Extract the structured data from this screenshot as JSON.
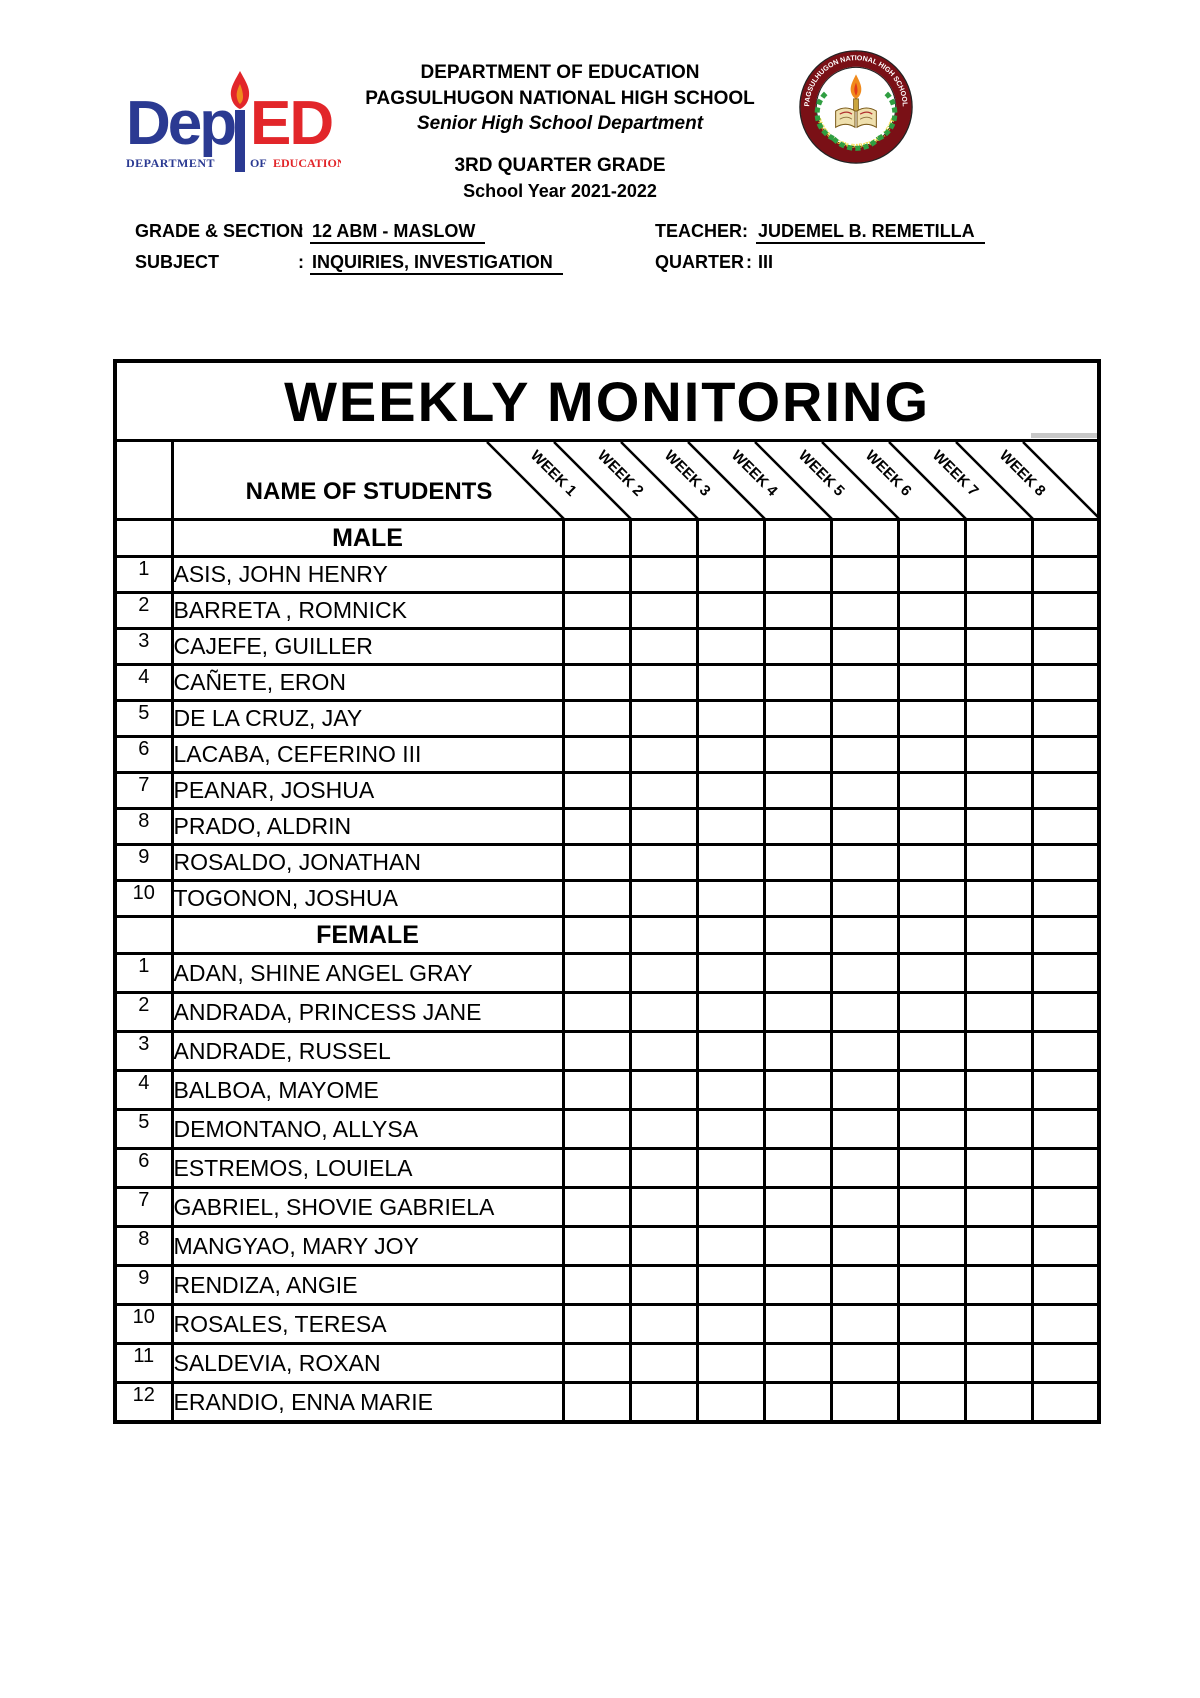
{
  "header": {
    "department": "DEPARTMENT OF EDUCATION",
    "school_name": "PAGSULHUGON NATIONAL HIGH SCHOOL",
    "subtitle": "Senior High School Department",
    "quarter_grade": "3RD QUARTER GRADE",
    "school_year": "School Year 2021-2022"
  },
  "logo": {
    "main_left": "Dep",
    "main_right": "ED",
    "sub1": "DEPARTMENT",
    "sub2": "OF",
    "sub3": "EDUCATION"
  },
  "seal": {
    "top_text": "PAGSULHUGON NATIONAL HIGH SCHOOL",
    "bottom_text": "PAGSULHUGON, BABATNGON, LEYTE"
  },
  "info": {
    "grade_section_label": "GRADE & SECTION",
    "colon": ":",
    "grade_section_value": "12 ABM - MASLOW",
    "teacher_label": "TEACHER:",
    "teacher_value": "JUDEMEL B. REMETILLA",
    "subject_label": "SUBJECT",
    "subject_value": "INQUIRIES, INVESTIGATION",
    "quarter_label": "QUARTER",
    "quarter_value": "III"
  },
  "table": {
    "title": "WEEKLY MONITORING",
    "name_header": "NAME OF STUDENTS",
    "weeks": [
      "WEEK 1",
      "WEEK 2",
      "WEEK 3",
      "WEEK 4",
      "WEEK 5",
      "WEEK 6",
      "WEEK 7",
      "WEEK 8"
    ],
    "male_header": "MALE",
    "male_students": [
      {
        "no": "1",
        "name": "ASIS, JOHN HENRY"
      },
      {
        "no": "2",
        "name": "BARRETA , ROMNICK"
      },
      {
        "no": "3",
        "name": "CAJEFE, GUILLER"
      },
      {
        "no": "4",
        "name": "CAÑETE, ERON"
      },
      {
        "no": "5",
        "name": "DE LA CRUZ, JAY"
      },
      {
        "no": "6",
        "name": "LACABA, CEFERINO III"
      },
      {
        "no": "7",
        "name": "PEANAR, JOSHUA"
      },
      {
        "no": "8",
        "name": "PRADO, ALDRIN"
      },
      {
        "no": "9",
        "name": "ROSALDO, JONATHAN"
      },
      {
        "no": "10",
        "name": "TOGONON, JOSHUA"
      }
    ],
    "female_header": "FEMALE",
    "female_students": [
      {
        "no": "1",
        "name": "ADAN, SHINE ANGEL GRAY"
      },
      {
        "no": "2",
        "name": "ANDRADA, PRINCESS JANE"
      },
      {
        "no": "3",
        "name": "ANDRADE, RUSSEL"
      },
      {
        "no": "4",
        "name": "BALBOA, MAYOME"
      },
      {
        "no": "5",
        "name": "DEMONTANO, ALLYSA"
      },
      {
        "no": "6",
        "name": "ESTREMOS, LOUIELA"
      },
      {
        "no": "7",
        "name": "GABRIEL, SHOVIE GABRIELA"
      },
      {
        "no": "8",
        "name": "MANGYAO, MARY JOY"
      },
      {
        "no": "9",
        "name": "RENDIZA, ANGIE"
      },
      {
        "no": "10",
        "name": "ROSALES, TERESA"
      },
      {
        "no": "11",
        "name": "SALDEVIA, ROXAN"
      },
      {
        "no": "12",
        "name": "ERANDIO, ENNA MARIE"
      }
    ]
  },
  "colors": {
    "deped_blue": "#2b3a92",
    "deped_red": "#e2262a",
    "seal_maroon": "#7a1016",
    "seal_green": "#2f9e41",
    "seal_gold": "#f5d327",
    "flame_orange": "#f08a1d"
  }
}
